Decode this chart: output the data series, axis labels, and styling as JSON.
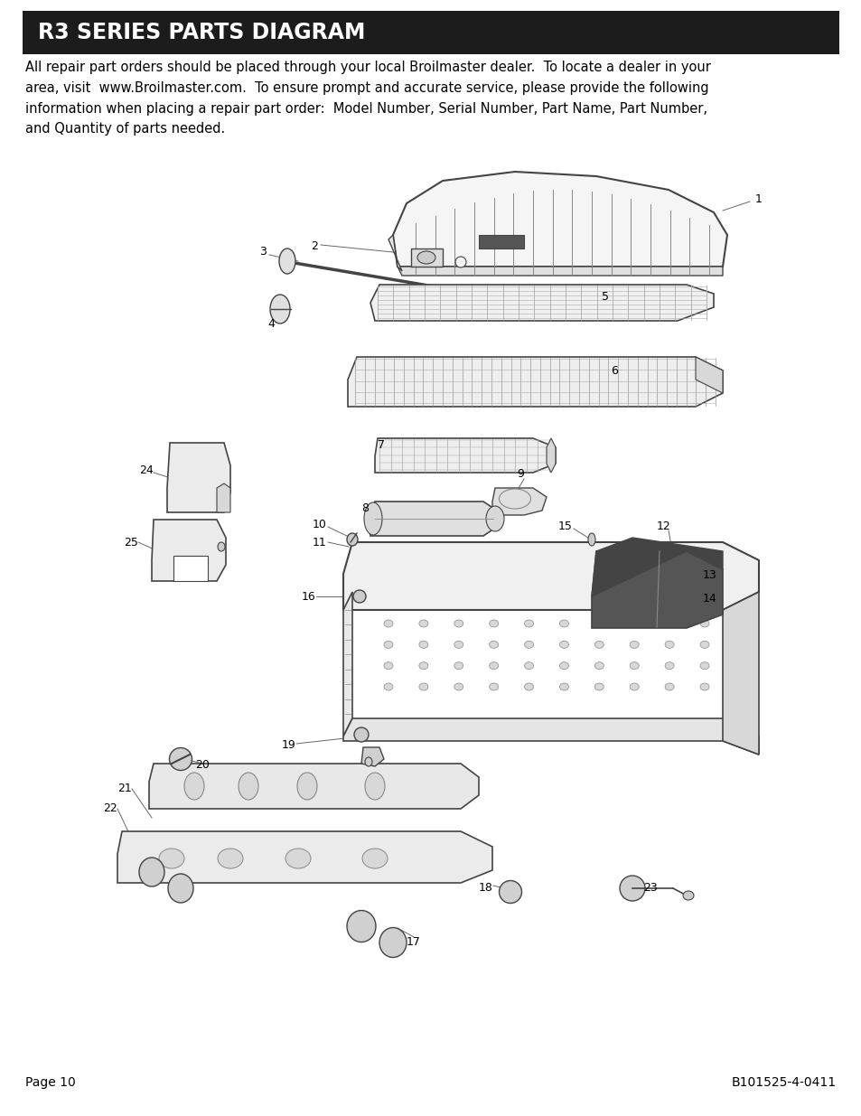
{
  "title": "R3 SERIES PARTS DIAGRAM",
  "title_bg": "#1c1c1c",
  "title_color": "#ffffff",
  "title_fontsize": 17,
  "body_text": "All repair part orders should be placed through your local Broilmaster dealer.  To locate a dealer in your\narea, visit  www.Broilmaster.com.  To ensure prompt and accurate service, please provide the following\ninformation when placing a repair part order:  Model Number, Serial Number, Part Name, Part Number,\nand Quantity of parts needed.",
  "body_fontsize": 10.5,
  "page_label": "Page 10",
  "doc_number": "B101525-4-0411",
  "footer_fontsize": 10,
  "bg_color": "#ffffff",
  "line_color": "#444444",
  "light_fill": "#f0f0f0",
  "mid_fill": "#d8d8d8",
  "dark_fill": "#222222"
}
